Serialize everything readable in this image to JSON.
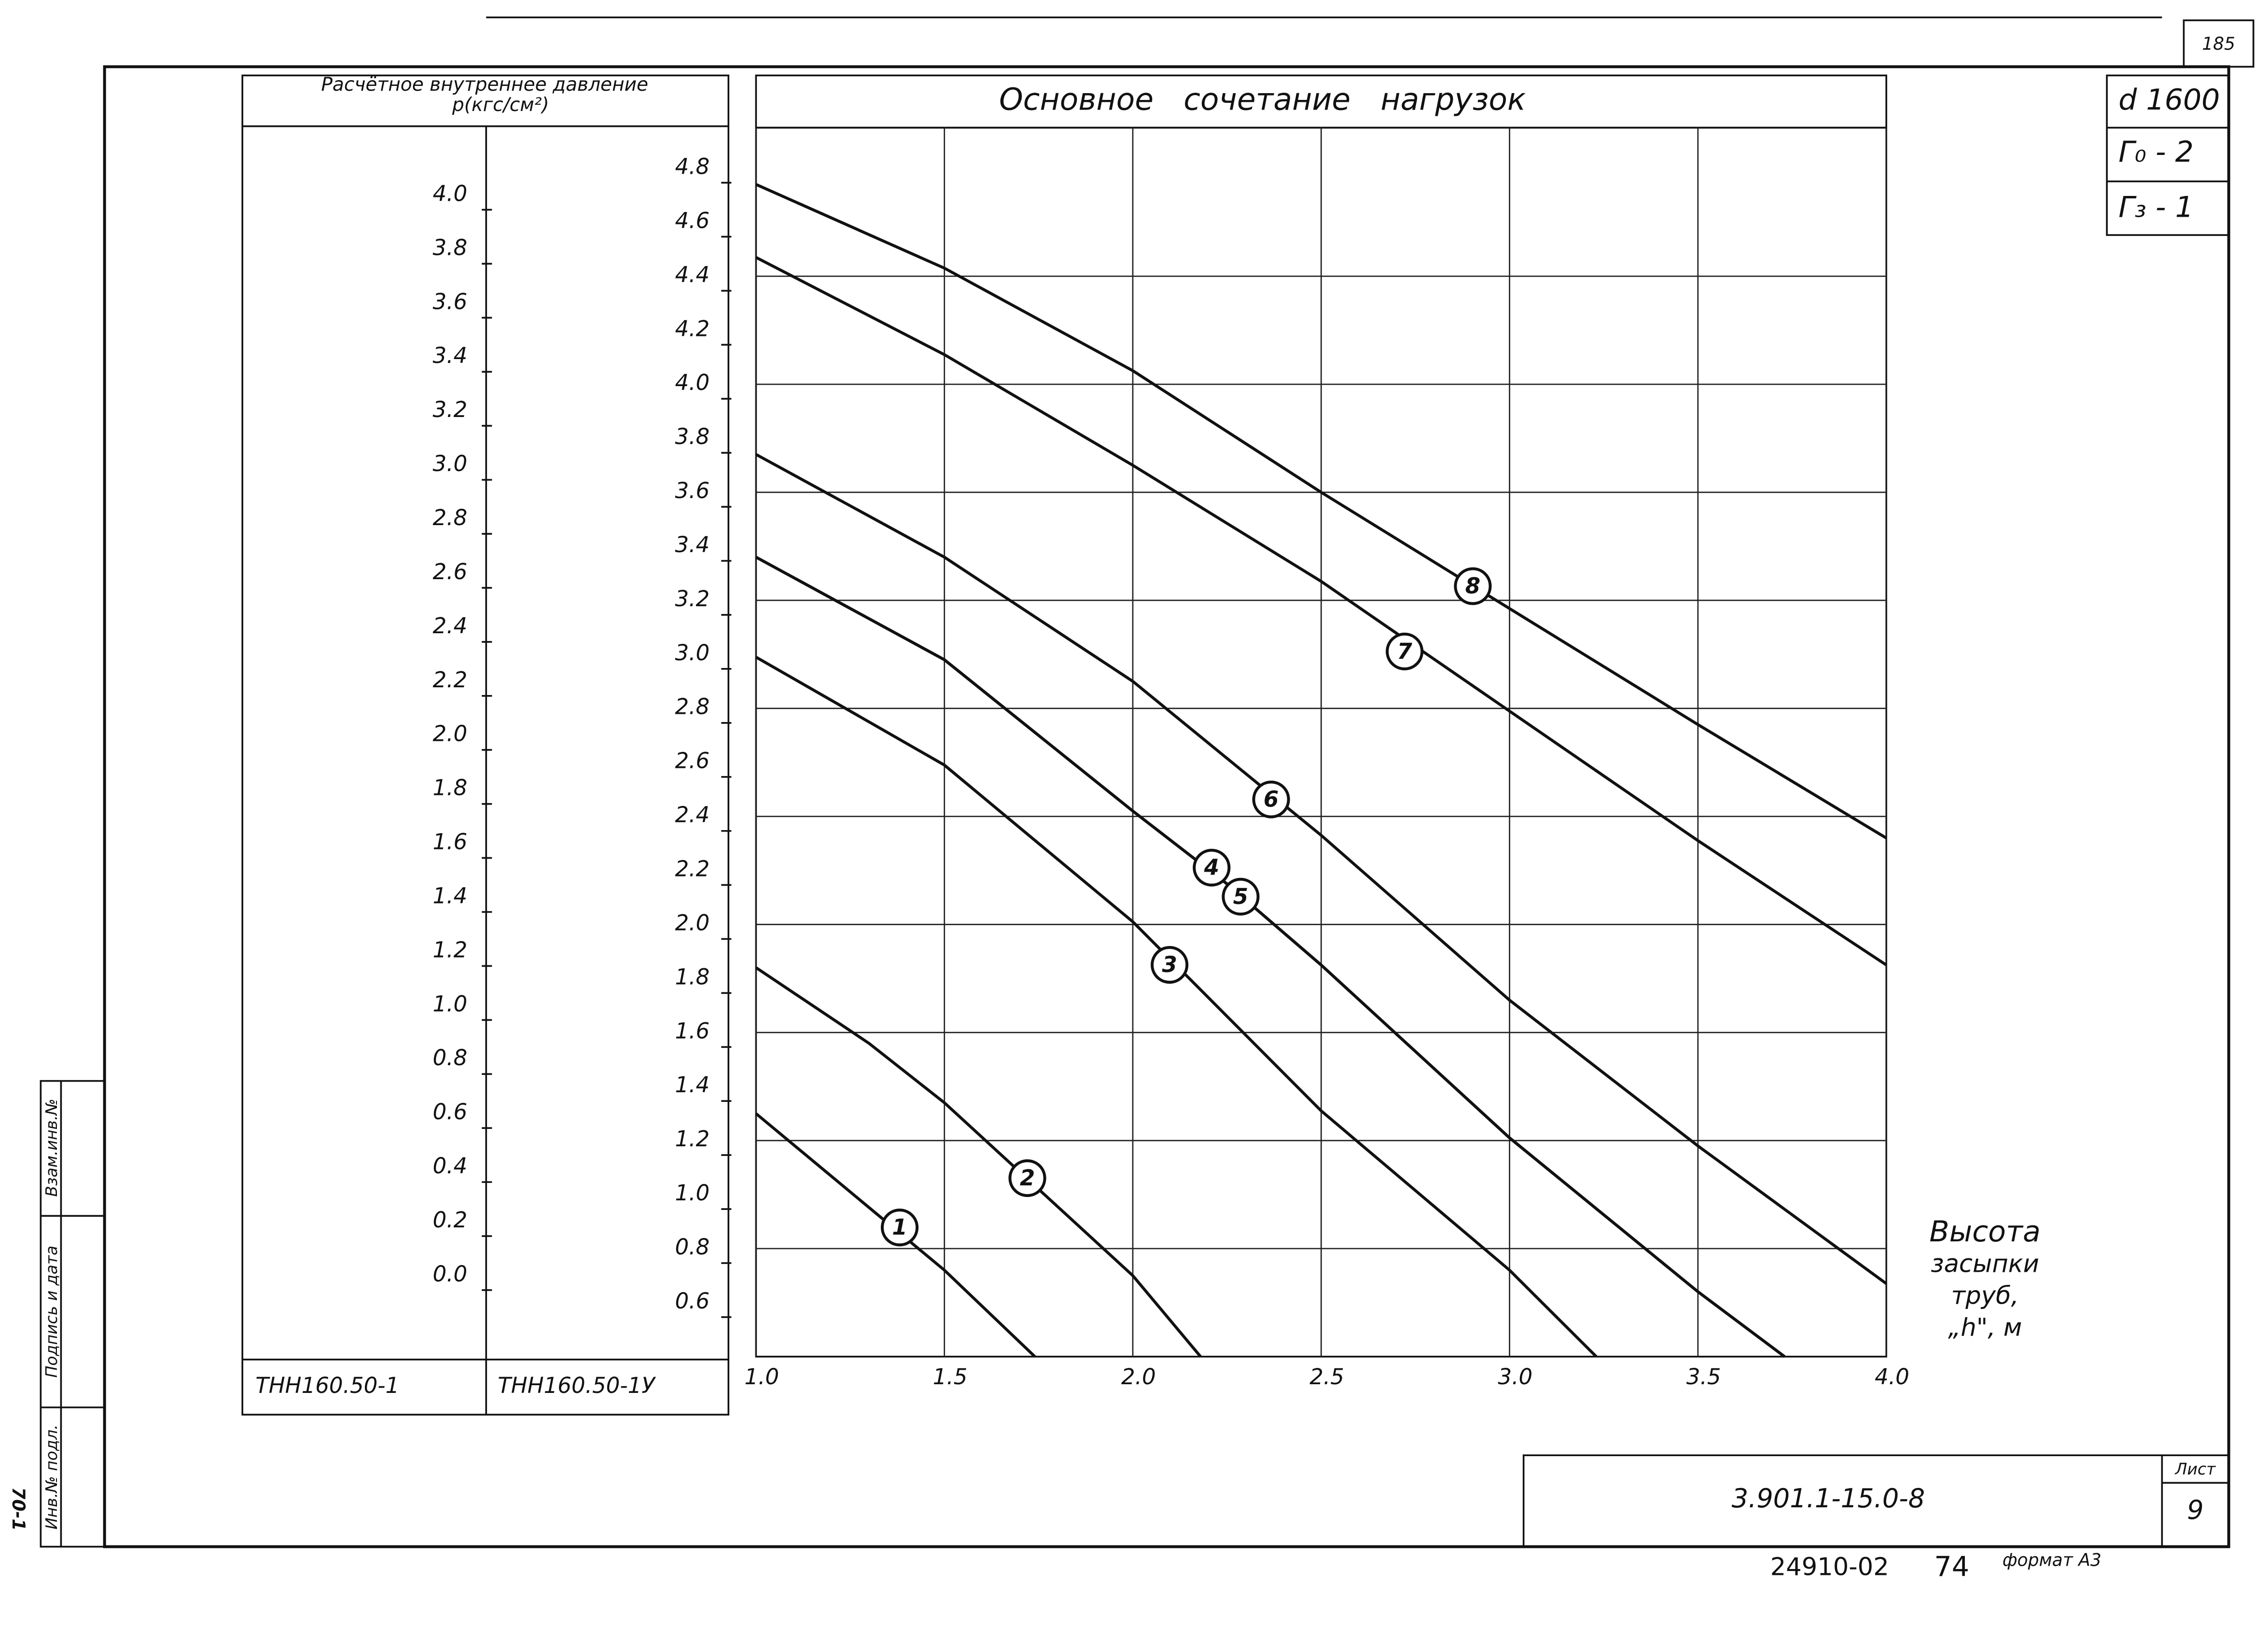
{
  "document": {
    "page_number": "185",
    "stamp": [
      "d 1600",
      "Г₀ - 2",
      "Г₃ - 1"
    ],
    "designation": "3.901.1-15.0-8",
    "sheet_label": "Лист",
    "sheet": "9",
    "order": "24910-02",
    "order_no": "74",
    "format": "формат А3",
    "side_labels": [
      "Инв.№ подл.",
      "Подпись и дата",
      "Взам.инв.№"
    ],
    "side_code": "70-1"
  },
  "chart_data": {
    "type": "line",
    "title": "Основное сочетание нагрузок",
    "y_label_lines": [
      "Расчётное внутреннее давление",
      "р(кгс/см²)"
    ],
    "x_label_lines": [
      "Высота",
      "засыпки",
      "труб,",
      "„h\", м"
    ],
    "columns": [
      "ТНН160.50-1",
      "ТНН160.50-1У"
    ],
    "xlim": [
      1.0,
      4.0
    ],
    "xticks": [
      {
        "value": 1,
        "label": "1.0"
      },
      1.5,
      {
        "value": 2,
        "label": "2.0"
      },
      2.5,
      {
        "value": 3,
        "label": "3.0"
      },
      3.5,
      {
        "value": 4,
        "label": "4.0"
      }
    ],
    "ylim": [
      0.4,
      4.95
    ],
    "yticks": [
      4.8,
      4.6,
      4.4,
      4.2,
      {
        "value": 4,
        "label": "4.0"
      },
      3.8,
      3.6,
      3.4,
      3.2,
      {
        "value": 3,
        "label": "3.0"
      },
      2.8,
      2.6,
      2.4,
      2.2,
      {
        "value": 2,
        "label": "2.0"
      },
      1.8,
      1.6,
      1.4,
      1.2,
      {
        "value": 1,
        "label": "1.0"
      },
      0.8,
      0.6
    ],
    "y2lim": [
      -0.3,
      4.25
    ],
    "y2ticks": [
      {
        "value": 4,
        "label": "4.0"
      },
      3.8,
      3.6,
      3.4,
      3.2,
      {
        "value": 3,
        "label": "3.0"
      },
      2.8,
      2.6,
      2.4,
      2.2,
      {
        "value": 2,
        "label": "2.0"
      },
      1.8,
      1.6,
      1.4,
      1.2,
      {
        "value": 1,
        "label": "1.0"
      },
      0.8,
      0.6,
      0.4,
      0.2,
      {
        "value": 0,
        "label": "0.0"
      }
    ],
    "ygrid": [
      4.4,
      4.0,
      3.6,
      3.2,
      2.8,
      2.4,
      2.0,
      1.6,
      1.2,
      0.8
    ],
    "grid": true,
    "series": [
      {
        "name": "1",
        "color": "#111111",
        "x": [
          1.0,
          1.5,
          1.74
        ],
        "values": [
          1.3,
          0.72,
          0.4
        ]
      },
      {
        "name": "2",
        "color": "#111111",
        "x": [
          1.0,
          1.3,
          1.5,
          2.0,
          2.18
        ],
        "values": [
          1.84,
          1.56,
          1.34,
          0.7,
          0.4
        ]
      },
      {
        "name": "3",
        "color": "#111111",
        "x": [
          1.0,
          1.5,
          2.0,
          2.5,
          3.0,
          3.23
        ],
        "values": [
          2.99,
          2.59,
          2.01,
          1.31,
          0.72,
          0.4
        ]
      },
      {
        "name": "4",
        "color": "#111111",
        "x": [
          1.0,
          1.5,
          2.0,
          2.25,
          2.5,
          3.0,
          3.5,
          3.73
        ],
        "values": [
          3.36,
          2.98,
          2.42,
          2.15,
          1.85,
          1.21,
          0.64,
          0.4
        ]
      },
      {
        "name": "5",
        "color": "#111111",
        "x": [
          1.0,
          1.5,
          2.0,
          2.25,
          2.5,
          3.0,
          3.5,
          3.73
        ],
        "values": [
          3.36,
          2.98,
          2.42,
          2.15,
          1.85,
          1.21,
          0.64,
          0.4
        ]
      },
      {
        "name": "6",
        "color": "#111111",
        "x": [
          1.0,
          1.5,
          2.0,
          2.5,
          3.0,
          3.5,
          4.0
        ],
        "values": [
          3.74,
          3.36,
          2.9,
          2.33,
          1.72,
          1.18,
          0.67
        ]
      },
      {
        "name": "7",
        "color": "#111111",
        "x": [
          1.0,
          1.5,
          2.0,
          2.5,
          3.0,
          3.5,
          4.0
        ],
        "values": [
          4.47,
          4.11,
          3.7,
          3.27,
          2.79,
          2.31,
          1.85
        ]
      },
      {
        "name": "8",
        "color": "#111111",
        "x": [
          1.0,
          1.5,
          2.0,
          2.5,
          3.0,
          3.5,
          4.0
        ],
        "values": [
          4.74,
          4.43,
          4.05,
          3.6,
          3.17,
          2.74,
          2.32
        ]
      }
    ]
  }
}
